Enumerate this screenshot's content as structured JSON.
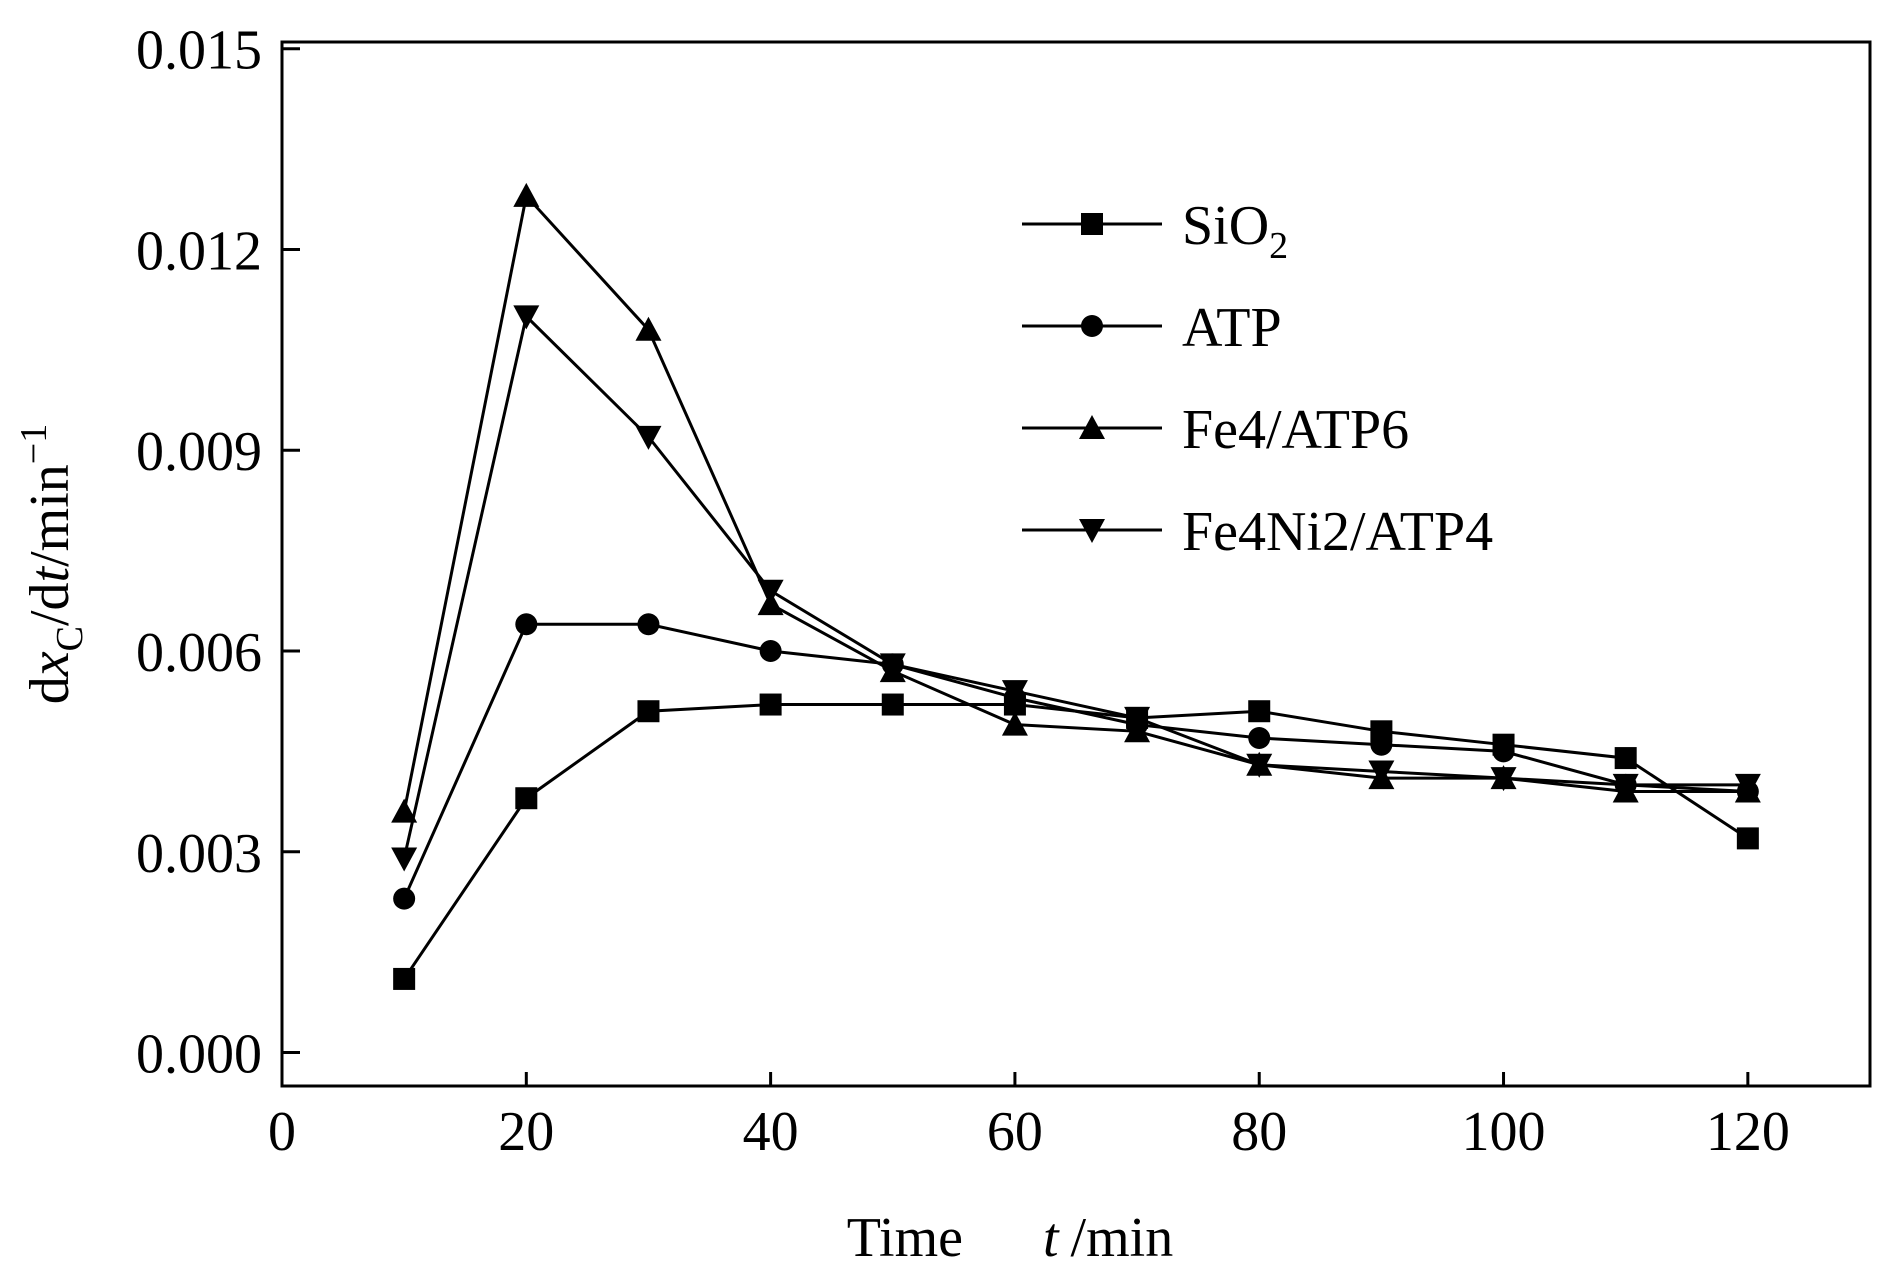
{
  "chart_data": {
    "type": "line",
    "x": [
      10,
      20,
      30,
      40,
      50,
      60,
      70,
      80,
      90,
      100,
      110,
      120
    ],
    "xlim": [
      0,
      130
    ],
    "ylim": [
      -0.0005,
      0.0151
    ],
    "xticks": [
      0,
      20,
      40,
      60,
      80,
      100,
      120
    ],
    "xtick_labels": [
      "0",
      "20",
      "40",
      "60",
      "80",
      "100",
      "120"
    ],
    "yticks": [
      0.0,
      0.003,
      0.006,
      0.009,
      0.012,
      0.015
    ],
    "ytick_labels": [
      "0.000",
      "0.003",
      "0.006",
      "0.009",
      "0.012",
      "0.015"
    ],
    "xlabel": {
      "main": "Time",
      "var": "t",
      "unit": "/min"
    },
    "ylabel": {
      "d1": "d",
      "x": "x",
      "sub": "C",
      "mid": "/d",
      "t": "t",
      "unit": "/min",
      "sup": "−1"
    },
    "legend_position": "top-right",
    "grid": false,
    "series": [
      {
        "name": "SiO",
        "name_sub": "2",
        "marker": "square",
        "values": [
          0.0011,
          0.0038,
          0.0051,
          0.0052,
          0.0052,
          0.0052,
          0.005,
          0.0051,
          0.0048,
          0.0046,
          0.0044,
          0.0032
        ]
      },
      {
        "name": "ATP",
        "name_sub": "",
        "marker": "circle",
        "values": [
          0.0023,
          0.0064,
          0.0064,
          0.006,
          0.0058,
          0.0053,
          0.0049,
          0.0047,
          0.0046,
          0.0045,
          0.004,
          0.0039
        ]
      },
      {
        "name": "Fe4/ATP6",
        "name_sub": "",
        "marker": "triangle-up",
        "values": [
          0.0036,
          0.0128,
          0.0108,
          0.0067,
          0.0057,
          0.0049,
          0.0048,
          0.0043,
          0.0041,
          0.0041,
          0.0039,
          0.0039
        ]
      },
      {
        "name": "Fe4Ni2/ATP4",
        "name_sub": "",
        "marker": "triangle-down",
        "values": [
          0.0029,
          0.011,
          0.0092,
          0.0069,
          0.0058,
          0.0054,
          0.005,
          0.0043,
          0.0042,
          0.0041,
          0.004,
          0.004
        ]
      }
    ]
  }
}
